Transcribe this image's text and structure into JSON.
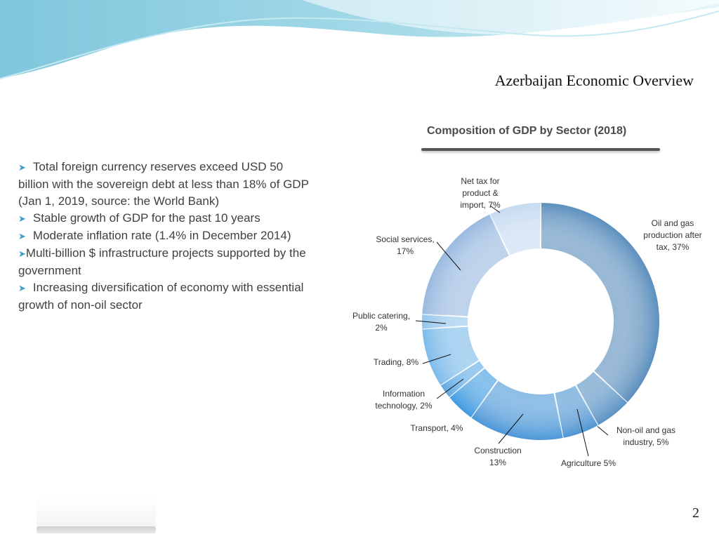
{
  "slide": {
    "title": "Azerbaijan Economic Overview",
    "page_number": "2"
  },
  "bullets": [
    "Total foreign currency reserves exceed USD 50 billion with the sovereign debt at less than 18% of GDP (Jan 1, 2019, source: the World Bank)",
    "Stable growth of GDP for the past 10 years",
    "Moderate inflation rate   (1.4% in December 2014)",
    "Multi-billion $ infrastructure projects supported by the government",
    "Increasing diversification of economy with essential growth of non-oil sector"
  ],
  "colors": {
    "bullet_arrow": "#3aa0c8",
    "wave_dark": "#8fd0e0",
    "wave_light": "#d4eef5"
  },
  "chart_data": {
    "type": "pie",
    "variant": "donut",
    "title": "Composition of GDP by Sector (2018)",
    "unit": "%",
    "slices": [
      {
        "name": "Oil and gas production after tax",
        "label_lines": [
          "Oil and gas",
          "production after",
          "tax, 37%"
        ],
        "value": 37,
        "color": "#5b8fbd"
      },
      {
        "name": "Non-oil and gas industry",
        "label_lines": [
          "Non-oil and gas",
          "industry, 5%"
        ],
        "value": 5,
        "color": "#5a92c4"
      },
      {
        "name": "Agriculture",
        "label_lines": [
          "Agriculture 5%"
        ],
        "value": 5,
        "color": "#4f95d2"
      },
      {
        "name": "Construction",
        "label_lines": [
          "Construction",
          "13%"
        ],
        "value": 13,
        "color": "#4c97d8"
      },
      {
        "name": "Transport",
        "label_lines": [
          "Transport, 4%"
        ],
        "value": 4,
        "color": "#3f9be0"
      },
      {
        "name": "Information technology",
        "label_lines": [
          "Information",
          "technology, 2%"
        ],
        "value": 2,
        "color": "#5faae3"
      },
      {
        "name": "Trading",
        "label_lines": [
          "Trading, 8%"
        ],
        "value": 8,
        "color": "#7dbbea"
      },
      {
        "name": "Public catering",
        "label_lines": [
          "Public catering,",
          "2%"
        ],
        "value": 2,
        "color": "#92c5ec"
      },
      {
        "name": "Social services",
        "label_lines": [
          "Social services,",
          "17%"
        ],
        "value": 17,
        "color": "#98b9df"
      },
      {
        "name": "Net tax for product & import",
        "label_lines": [
          "Net tax for",
          "product &",
          "import, 7%"
        ],
        "value": 7,
        "color": "#c6daf0"
      }
    ]
  }
}
